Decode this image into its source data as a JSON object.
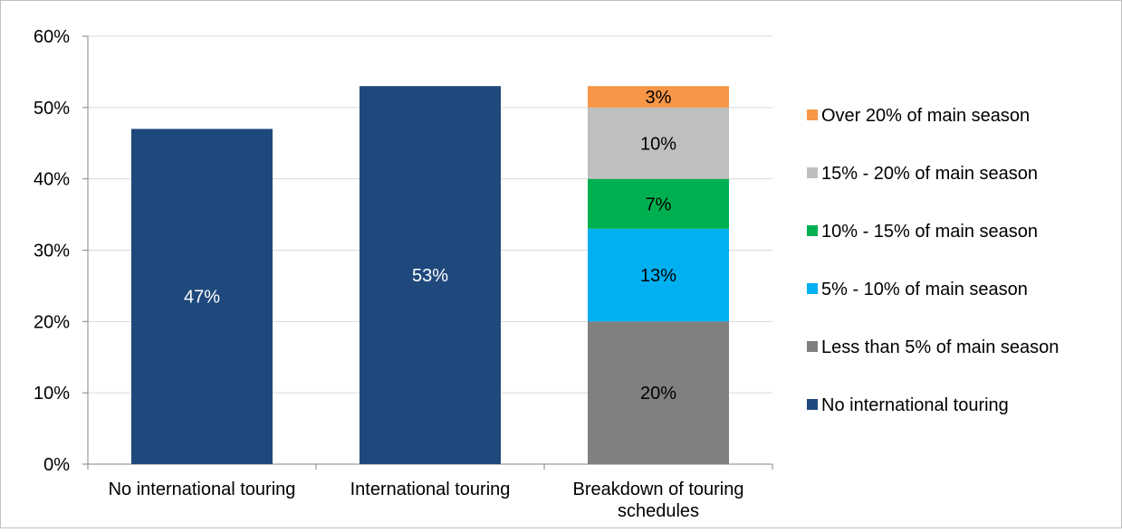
{
  "chart_data": {
    "type": "bar",
    "title": "",
    "xlabel": "",
    "ylabel": "",
    "ylim": [
      0,
      60
    ],
    "yticks": [
      "0%",
      "10%",
      "20%",
      "30%",
      "40%",
      "50%",
      "60%"
    ],
    "grid": true,
    "legend_position": "right",
    "categories": [
      {
        "label_lines": [
          "No international touring"
        ]
      },
      {
        "label_lines": [
          "International touring"
        ]
      },
      {
        "label_lines": [
          "Breakdown of touring",
          "schedules"
        ]
      }
    ],
    "series": [
      {
        "name": "No international touring",
        "color": "#1f497d",
        "values": [
          47,
          null,
          null
        ],
        "labels": [
          "47%",
          "",
          ""
        ]
      },
      {
        "name": "International touring",
        "color": "#1f497d",
        "values": [
          null,
          53,
          null
        ],
        "labels": [
          "",
          "53%",
          ""
        ]
      },
      {
        "name": "Less than 5% of main season",
        "color": "#808080",
        "values": [
          null,
          null,
          20
        ],
        "labels": [
          "",
          "",
          "20%"
        ]
      },
      {
        "name": "5% - 10% of main season",
        "color": "#00b0f0",
        "values": [
          null,
          null,
          13
        ],
        "labels": [
          "",
          "",
          "13%"
        ]
      },
      {
        "name": "10% - 15% of main season",
        "color": "#00b050",
        "values": [
          null,
          null,
          7
        ],
        "labels": [
          "",
          "",
          "7%"
        ]
      },
      {
        "name": "15% - 20% of main season",
        "color": "#bfbfbf",
        "values": [
          null,
          null,
          10
        ],
        "labels": [
          "",
          "",
          "10%"
        ]
      },
      {
        "name": "Over 20% of main season",
        "color": "#f79646",
        "values": [
          null,
          null,
          3
        ],
        "labels": [
          "",
          "",
          "3%"
        ]
      }
    ],
    "legend": [
      {
        "label": "Over 20% of main season",
        "color": "#f79646"
      },
      {
        "label": "15% - 20% of main season",
        "color": "#bfbfbf"
      },
      {
        "label": "10% - 15% of main season",
        "color": "#00b050"
      },
      {
        "label": "5% - 10% of main season",
        "color": "#00b0f0"
      },
      {
        "label": "Less than 5% of main season",
        "color": "#808080"
      },
      {
        "label": "No international touring",
        "color": "#1f497d"
      }
    ]
  }
}
